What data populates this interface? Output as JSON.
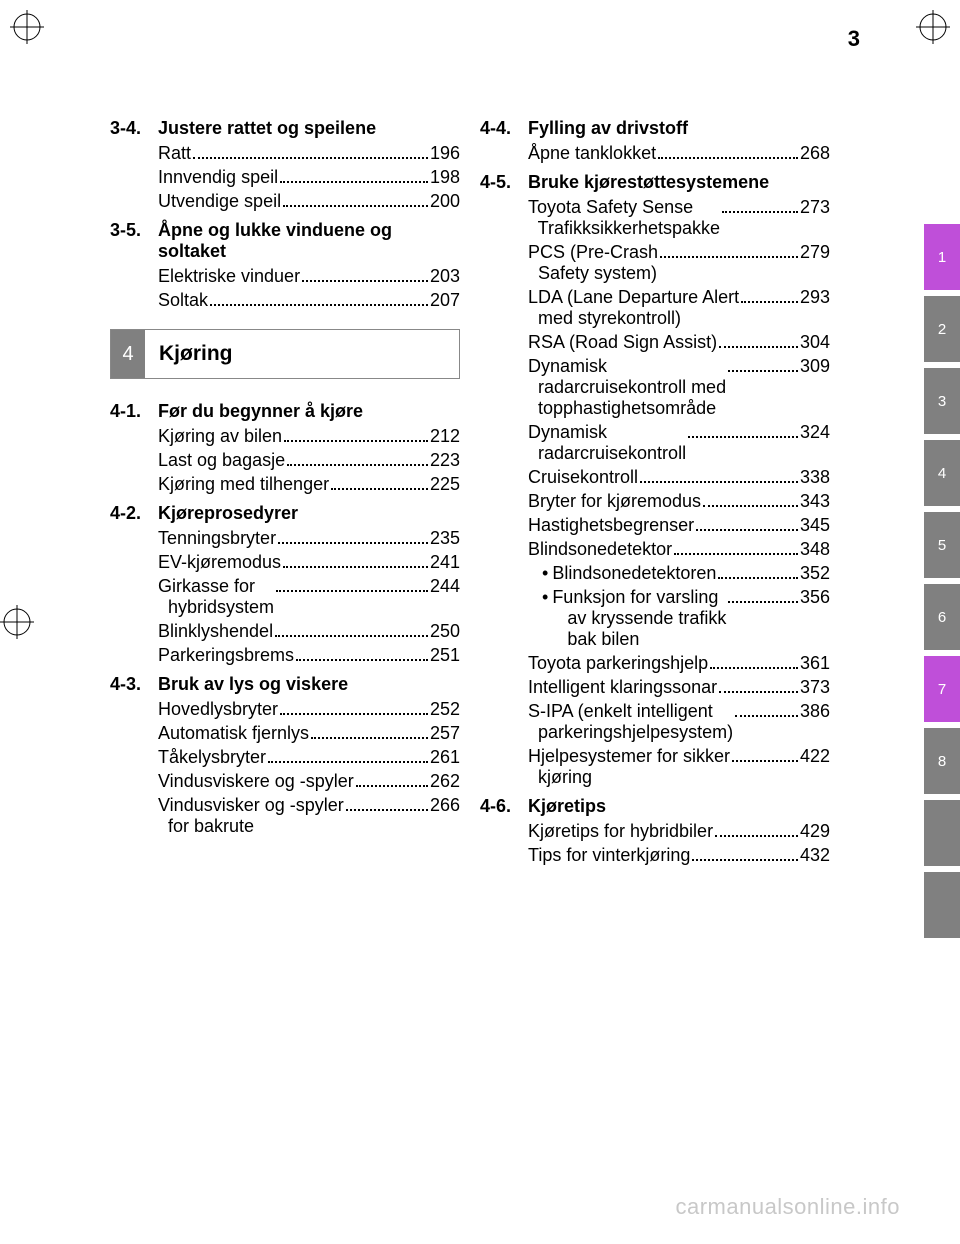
{
  "page_number": "3",
  "watermark": "carmanualsonline.info",
  "chapter": {
    "num": "4",
    "title": "Kjøring"
  },
  "left": {
    "sec34": {
      "num": "3-4.",
      "title": "Justere rattet og speilene",
      "items": [
        {
          "label": "Ratt",
          "page": "196"
        },
        {
          "label": "Innvendig speil",
          "page": "198"
        },
        {
          "label": "Utvendige speil",
          "page": "200"
        }
      ]
    },
    "sec35": {
      "num": "3-5.",
      "title": "Åpne og lukke vinduene og soltaket",
      "items": [
        {
          "label": "Elektriske vinduer",
          "page": "203"
        },
        {
          "label": "Soltak",
          "page": "207"
        }
      ]
    },
    "sec41": {
      "num": "4-1.",
      "title": "Før du begynner å kjøre",
      "items": [
        {
          "label": "Kjøring av bilen",
          "page": "212"
        },
        {
          "label": "Last og bagasje",
          "page": "223"
        },
        {
          "label": "Kjøring med tilhenger",
          "page": "225"
        }
      ]
    },
    "sec42": {
      "num": "4-2.",
      "title": "Kjøreprosedyrer",
      "items": [
        {
          "label": "Tenningsbryter",
          "page": "235"
        },
        {
          "label": "EV-kjøremodus",
          "page": "241"
        },
        {
          "label": "Girkasse for\n  hybridsystem",
          "page": "244"
        },
        {
          "label": "Blinklyshendel",
          "page": "250"
        },
        {
          "label": "Parkeringsbrems",
          "page": "251"
        }
      ]
    },
    "sec43": {
      "num": "4-3.",
      "title": "Bruk av lys og viskere",
      "items": [
        {
          "label": "Hovedlysbryter",
          "page": "252"
        },
        {
          "label": "Automatisk fjernlys",
          "page": "257"
        },
        {
          "label": "Tåkelysbryter",
          "page": "261"
        },
        {
          "label": "Vindusviskere og -spyler",
          "page": "262"
        },
        {
          "label": "Vindusvisker og -spyler\n  for bakrute",
          "page": "266"
        }
      ]
    }
  },
  "right": {
    "sec44": {
      "num": "4-4.",
      "title": "Fylling av drivstoff",
      "items": [
        {
          "label": "Åpne tanklokket",
          "page": "268"
        }
      ]
    },
    "sec45": {
      "num": "4-5.",
      "title": "Bruke kjørestøttesystemene",
      "items": [
        {
          "label": "Toyota Safety Sense\n  Trafikksikkerhetspakke",
          "page": "273"
        },
        {
          "label": "PCS (Pre-Crash\n  Safety system)",
          "page": "279"
        },
        {
          "label": "LDA (Lane Departure Alert\n  med styrekontroll)",
          "page": "293"
        },
        {
          "label": "RSA (Road Sign Assist)",
          "page": "304"
        },
        {
          "label": "Dynamisk\n  radarcruisekontroll med\n  topphastighetsområde",
          "page": "309"
        },
        {
          "label": "Dynamisk\n  radarcruisekontroll",
          "page": "324"
        },
        {
          "label": "Cruisekontroll",
          "page": "338"
        },
        {
          "label": "Bryter for kjøremodus",
          "page": "343"
        },
        {
          "label": "Hastighetsbegrenser",
          "page": "345"
        },
        {
          "label": "Blindsonedetektor",
          "page": "348"
        }
      ],
      "subitems": [
        {
          "label": "Blindsonedetektoren",
          "page": "352"
        },
        {
          "label": "Funksjon for varsling\n   av kryssende trafikk\n   bak bilen",
          "page": "356"
        }
      ],
      "items2": [
        {
          "label": "Toyota parkeringshjelp",
          "page": "361"
        },
        {
          "label": "Intelligent klaringssonar",
          "page": "373"
        },
        {
          "label": "S-IPA (enkelt intelligent\n  parkeringshjelpesystem)",
          "page": "386"
        },
        {
          "label": "Hjelpesystemer for sikker\n  kjøring",
          "page": "422"
        }
      ]
    },
    "sec46": {
      "num": "4-6.",
      "title": "Kjøretips",
      "items": [
        {
          "label": "Kjøretips for hybridbiler",
          "page": "429"
        },
        {
          "label": "Tips for vinterkjøring",
          "page": "432"
        }
      ]
    }
  },
  "tabs": [
    "1",
    "2",
    "3",
    "4",
    "5",
    "6",
    "7",
    "8"
  ],
  "tab_colors": [
    "purple",
    "gray",
    "gray",
    "gray",
    "gray",
    "gray",
    "purple",
    "gray"
  ]
}
